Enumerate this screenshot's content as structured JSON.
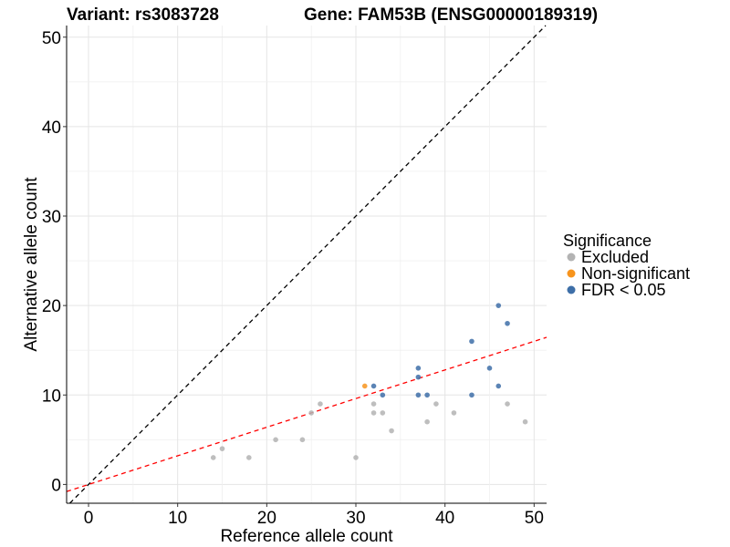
{
  "chart_data": {
    "type": "scatter",
    "title_left": "Variant: rs3083728",
    "title_right": "Gene: FAM53B (ENSG00000189319)",
    "xlabel": "Reference allele count",
    "ylabel": "Alternative allele count",
    "xlim": [
      -2.46,
      51.4
    ],
    "ylim": [
      -2.1,
      51.3
    ],
    "xticks": [
      0,
      10,
      20,
      30,
      40,
      50
    ],
    "yticks": [
      0,
      10,
      20,
      30,
      40,
      50
    ],
    "grid": true,
    "legend": {
      "title": "Significance",
      "placement": "right",
      "entries": [
        {
          "label": "Excluded",
          "color": "#b3b3b3"
        },
        {
          "label": "Non-significant",
          "color": "#f7941d"
        },
        {
          "label": "FDR < 0.05",
          "color": "#3e6fa8"
        }
      ]
    },
    "reference_lines": [
      {
        "name": "identity",
        "slope": 1,
        "intercept": 0,
        "color": "#000000"
      },
      {
        "name": "fit",
        "slope": 0.32,
        "intercept": 0,
        "color": "#ff0000"
      }
    ],
    "series": [
      {
        "name": "Excluded",
        "color": "#b3b3b3",
        "points": [
          [
            14,
            3
          ],
          [
            15,
            4
          ],
          [
            18,
            3
          ],
          [
            21,
            5
          ],
          [
            24,
            5
          ],
          [
            25,
            8
          ],
          [
            26,
            9
          ],
          [
            30,
            3
          ],
          [
            32,
            9
          ],
          [
            32,
            8
          ],
          [
            33,
            8
          ],
          [
            34,
            6
          ],
          [
            38,
            7
          ],
          [
            39,
            9
          ],
          [
            41,
            8
          ],
          [
            47,
            9
          ],
          [
            49,
            7
          ]
        ]
      },
      {
        "name": "Non-significant",
        "color": "#f7941d",
        "points": [
          [
            31,
            11
          ]
        ]
      },
      {
        "name": "FDR < 0.05",
        "color": "#3e6fa8",
        "points": [
          [
            32,
            11
          ],
          [
            33,
            10
          ],
          [
            37,
            13
          ],
          [
            37,
            12
          ],
          [
            37,
            10
          ],
          [
            38,
            10
          ],
          [
            43,
            16
          ],
          [
            43,
            10
          ],
          [
            45,
            13
          ],
          [
            46,
            20
          ],
          [
            46,
            11
          ],
          [
            47,
            18
          ]
        ]
      }
    ]
  }
}
